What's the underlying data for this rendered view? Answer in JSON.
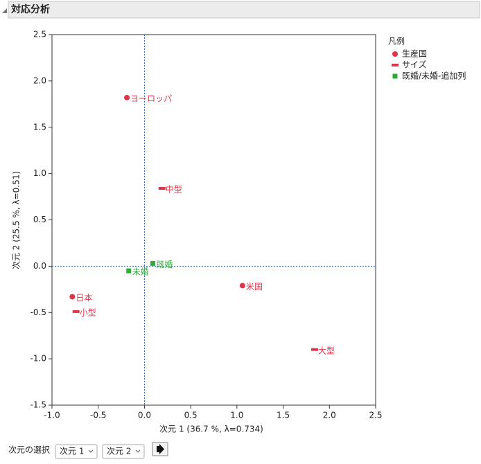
{
  "header": {
    "title": "対応分析"
  },
  "chart_data": {
    "type": "scatter",
    "xlabel": "次元 1 (36.7 %, λ=0.734)",
    "ylabel": "次元 2 (25.5 %, λ=0.51)",
    "xlim": [
      -1.0,
      2.5
    ],
    "ylim": [
      -1.5,
      2.5
    ],
    "xticks": [
      {
        "value": -1.0,
        "label": "-1.0"
      },
      -0.5,
      {
        "value": 0.0,
        "label": "0.0"
      },
      0.5,
      {
        "value": 1.0,
        "label": "1.0"
      },
      1.5,
      {
        "value": 2.0,
        "label": "2.0"
      },
      2.5
    ],
    "yticks": [
      -1.5,
      {
        "value": -1.0,
        "label": "-1.0"
      },
      -0.5,
      {
        "value": 0.0,
        "label": "0.0"
      },
      0.5,
      {
        "value": 1.0,
        "label": "1.0"
      },
      1.5,
      {
        "value": 2.0,
        "label": "2.0"
      },
      2.5
    ],
    "zero_lines": true,
    "legend_title": "凡例",
    "legend": "right",
    "series": [
      {
        "name": "生産国",
        "color": "#e0344a",
        "marker": "circle",
        "labels": [
          "ヨーロッパ",
          "米国",
          "日本"
        ],
        "x": [
          -0.19,
          1.06,
          -0.78
        ],
        "values": [
          1.82,
          -0.21,
          -0.33
        ]
      },
      {
        "name": "サイズ",
        "color": "#e0344a",
        "marker": "dash",
        "labels": [
          "中型",
          "小型",
          "大型"
        ],
        "x": [
          0.19,
          -0.74,
          1.84
        ],
        "values": [
          0.84,
          -0.49,
          -0.9
        ]
      },
      {
        "name": "既婚/未婚-追加列",
        "color": "#2eaa3a",
        "marker": "square",
        "labels": [
          "既婚",
          "未婚"
        ],
        "x": [
          0.09,
          -0.17
        ],
        "values": [
          0.03,
          -0.05
        ]
      }
    ]
  },
  "controls": {
    "label": "次元の選択",
    "x_select": "次元 1",
    "y_select": "次元 2"
  }
}
